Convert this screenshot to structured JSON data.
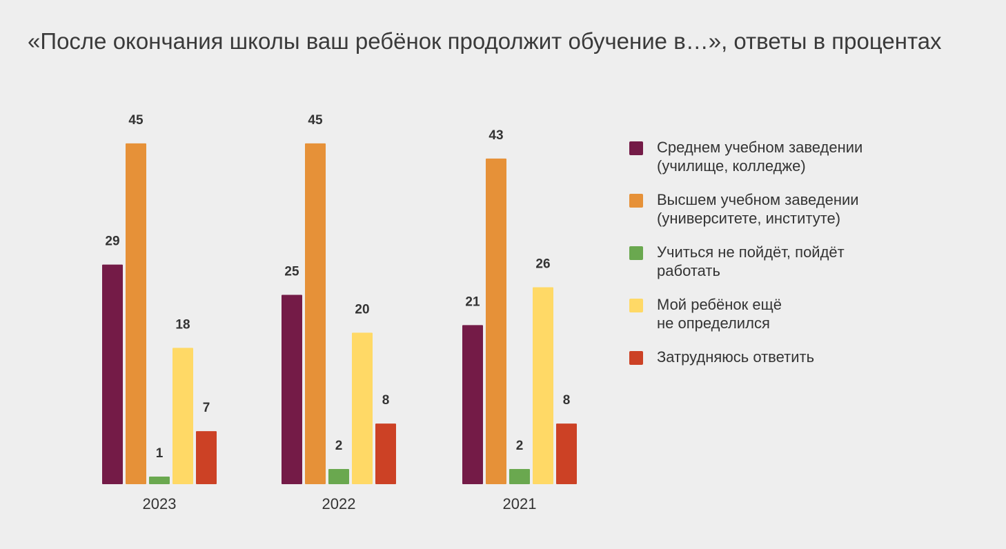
{
  "chart_data": {
    "type": "bar",
    "title": "«После окончания школы ваш ребёнок продолжит обучение в…», ответы в процентах",
    "categories": [
      "2023",
      "2022",
      "2021"
    ],
    "series": [
      {
        "name": "Среднем учебном заведении\n(училище, колледже)",
        "color": "#741b47",
        "values": [
          29,
          25,
          21
        ]
      },
      {
        "name": "Высшем учебном заведении\n(университете, институте)",
        "color": "#e69138",
        "values": [
          45,
          45,
          43
        ]
      },
      {
        "name": "Учиться не пойдёт, пойдёт\nработать",
        "color": "#6aa84f",
        "values": [
          1,
          2,
          2
        ]
      },
      {
        "name": "Мой ребёнок ещё\nне определился",
        "color": "#ffd966",
        "values": [
          18,
          20,
          26
        ]
      },
      {
        "name": "Затрудняюсь ответить",
        "color": "#cc4125",
        "values": [
          7,
          8,
          8
        ]
      }
    ],
    "ylim": [
      0,
      45
    ],
    "grid": false,
    "legend": "right"
  }
}
